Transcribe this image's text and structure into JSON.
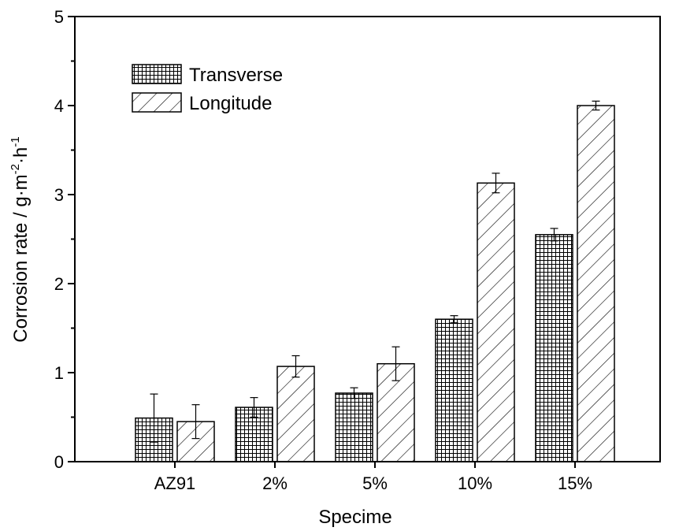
{
  "chart_data": {
    "type": "bar",
    "xlabel": "Specime",
    "ylabel_main": "Corrosion rate / g·m",
    "ylabel_sup1": "-2",
    "ylabel_mid": "·h",
    "ylabel_sup2": "-1",
    "ylim": [
      0,
      5
    ],
    "yticks": [
      "0",
      "1",
      "2",
      "3",
      "4",
      "5"
    ],
    "categories": [
      "AZ91",
      "2%",
      "5%",
      "10%",
      "15%"
    ],
    "legend_position": "top-left",
    "series": [
      {
        "name": "Transverse",
        "pattern": "grid",
        "values": [
          0.49,
          0.61,
          0.77,
          1.6,
          2.55
        ],
        "errors": [
          0.27,
          0.11,
          0.06,
          0.04,
          0.07
        ]
      },
      {
        "name": "Longitude",
        "pattern": "diagonal",
        "values": [
          0.45,
          1.07,
          1.1,
          3.13,
          4.0
        ],
        "errors": [
          0.19,
          0.12,
          0.19,
          0.11,
          0.05
        ]
      }
    ]
  }
}
